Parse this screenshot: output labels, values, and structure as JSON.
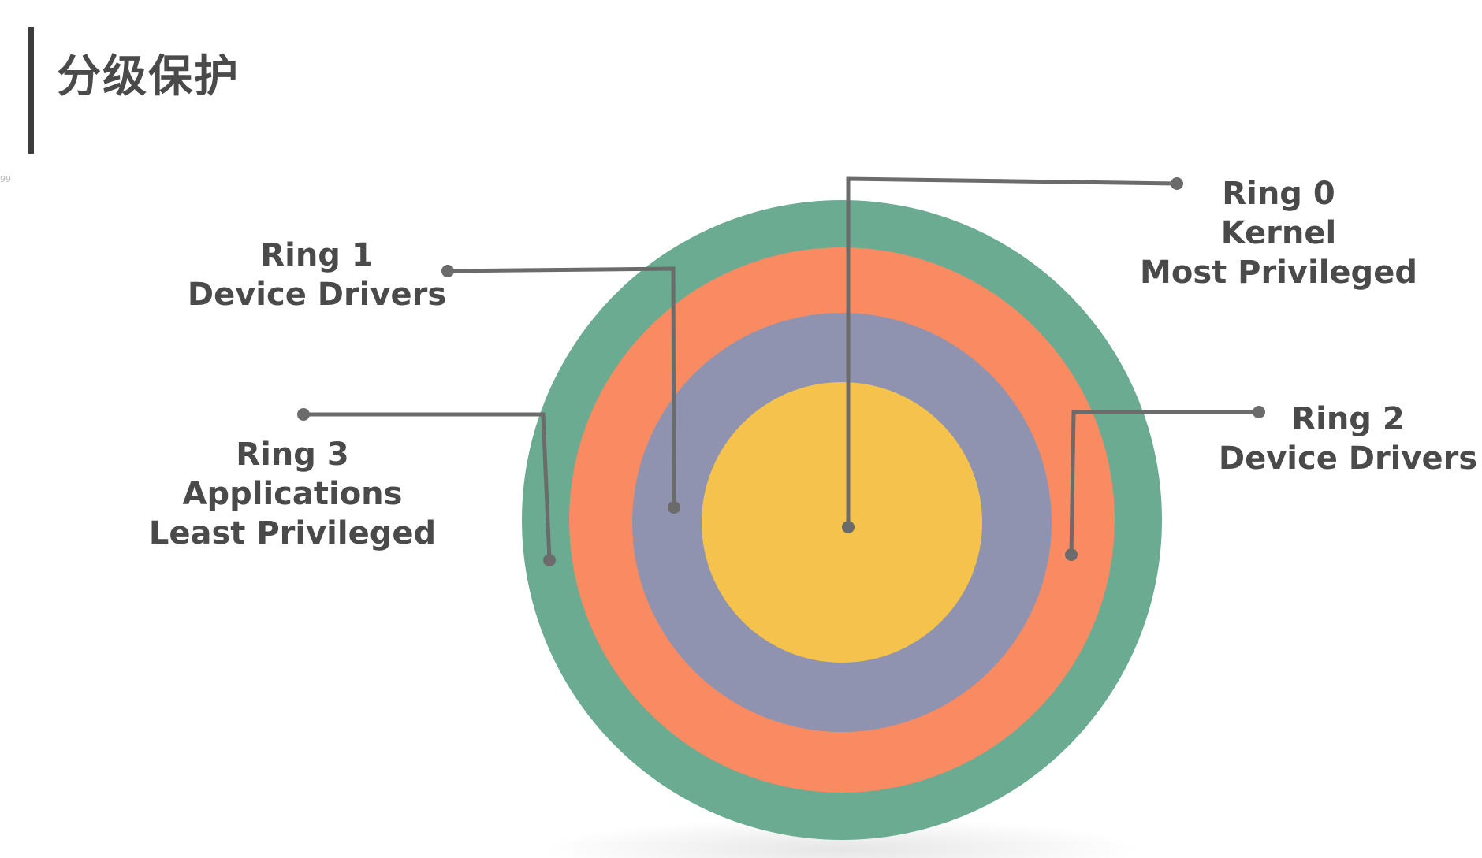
{
  "title": "分级保护",
  "stray_mark": "99",
  "colors": {
    "ring3": "#6aab92",
    "ring2": "#f98b62",
    "ring1": "#8f93b0",
    "ring0": "#f5c34b",
    "leader": "#6b6b6b",
    "text": "#4a4a4a"
  },
  "rings": [
    {
      "id": "ring0",
      "lines": [
        "Ring 0",
        "Kernel",
        "Most Privileged"
      ]
    },
    {
      "id": "ring1",
      "lines": [
        "Ring 1",
        "Device Drivers"
      ]
    },
    {
      "id": "ring2",
      "lines": [
        "Ring 2",
        "Device Drivers"
      ]
    },
    {
      "id": "ring3",
      "lines": [
        "Ring 3",
        "Applications",
        "Least Privileged"
      ]
    }
  ]
}
